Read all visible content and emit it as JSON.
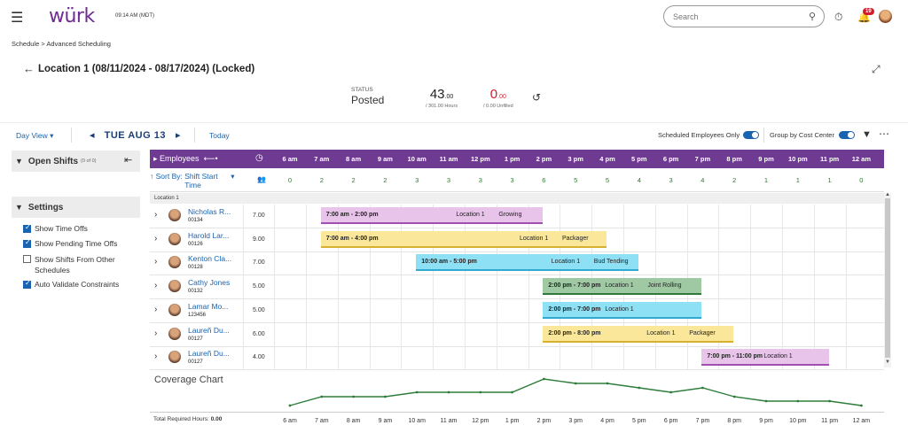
{
  "header": {
    "logo": "würk",
    "clock": "09:14 AM (MDT)",
    "search_placeholder": "Search",
    "notification_count": "19"
  },
  "breadcrumb": "Schedule > Advanced Scheduling",
  "page_title": "Location 1 (08/11/2024 - 08/17/2024) (Locked)",
  "status": {
    "label": "STATUS",
    "value": "Posted"
  },
  "metrics": {
    "hours": {
      "int": "43",
      "dec": ".00",
      "sub": "/ 301.00 Hours"
    },
    "unfilled": {
      "int": "0",
      "dec": ".00",
      "sub": "/ 0.00 Unfilled"
    }
  },
  "toolbar": {
    "day_view": "Day View",
    "date": "TUE AUG 13",
    "today": "Today",
    "scheduled_only": "Scheduled Employees Only",
    "group_cost_center": "Group by Cost Center"
  },
  "left_panel": {
    "open_shifts": "Open Shifts",
    "open_shifts_count": "(0 of 0)",
    "settings": "Settings",
    "options": [
      {
        "label": "Show Time Offs",
        "checked": true
      },
      {
        "label": "Show Pending Time Offs",
        "checked": true
      },
      {
        "label": "Show Shifts From Other Schedules",
        "checked": false
      },
      {
        "label": "Auto Validate Constraints",
        "checked": true
      }
    ]
  },
  "grid": {
    "employees_label": "Employees",
    "sort_by_label": "Sort By:",
    "sort_value": "Shift Start Time",
    "hours": [
      "6 am",
      "7 am",
      "8 am",
      "9 am",
      "10 am",
      "11 am",
      "12 pm",
      "1 pm",
      "2 pm",
      "3 pm",
      "4 pm",
      "5 pm",
      "6 pm",
      "7 pm",
      "8 pm",
      "9 pm",
      "10 pm",
      "11 pm",
      "12 am"
    ],
    "counts": [
      "0",
      "2",
      "2",
      "2",
      "3",
      "3",
      "3",
      "3",
      "6",
      "5",
      "5",
      "4",
      "3",
      "4",
      "2",
      "1",
      "1",
      "1",
      "0"
    ],
    "location_group": "Location 1",
    "employees": [
      {
        "name": "Nicholas R...",
        "id": "00134",
        "hours": "7.00",
        "shift": {
          "time": "7:00 am - 2:00 pm",
          "location": "Location 1",
          "role": "Growing",
          "start": 7,
          "end": 14,
          "color": "#e8c3ea",
          "line": "#a050b0"
        }
      },
      {
        "name": "Harold Lar...",
        "id": "00126",
        "hours": "9.00",
        "shift": {
          "time": "7:00 am - 4:00 pm",
          "location": "Location 1",
          "role": "Packager",
          "start": 7,
          "end": 16,
          "color": "#fbe79a",
          "line": "#d8b030"
        }
      },
      {
        "name": "Kenton Cla...",
        "id": "00128",
        "hours": "7.00",
        "shift": {
          "time": "10:00 am - 5:00 pm",
          "location": "Location 1",
          "role": "Bud Tending",
          "start": 10,
          "end": 17,
          "color": "#8ee0f5",
          "line": "#30a8d0"
        }
      },
      {
        "name": "Cathy Jones",
        "id": "00132",
        "hours": "5.00",
        "shift": {
          "time": "2:00 pm - 7:00 pm",
          "location": "Location 1",
          "role": "Joint Rolling",
          "start": 14,
          "end": 19,
          "color": "#9fc9a3",
          "line": "#2f7a3a"
        }
      },
      {
        "name": "Lamar Mo...",
        "id": "123456",
        "hours": "5.00",
        "shift": {
          "time": "2:00 pm - 7:00 pm",
          "location": "Location 1",
          "role": "",
          "start": 14,
          "end": 19,
          "color": "#8ee0f5",
          "line": "#30a8d0"
        }
      },
      {
        "name": "Laureñ Du...",
        "id": "00127",
        "hours": "6.00",
        "shift": {
          "time": "2:00 pm - 8:00 pm",
          "location": "Location 1",
          "role": "Packager",
          "start": 14,
          "end": 20,
          "color": "#fbe79a",
          "line": "#d8b030"
        }
      },
      {
        "name": "Laureñ Du...",
        "id": "00127",
        "hours": "4.00",
        "shift": {
          "time": "7:00 pm - 11:00 pm",
          "location": "Location 1",
          "role": "",
          "start": 19,
          "end": 23,
          "color": "#e8c3ea",
          "line": "#a050b0"
        }
      }
    ]
  },
  "coverage": {
    "title": "Coverage Chart",
    "total_label": "Total Required Hours:",
    "total_value": "0.00",
    "values": [
      0,
      2,
      2,
      2,
      3,
      3,
      3,
      3,
      6,
      5,
      5,
      4,
      3,
      4,
      2,
      1,
      1,
      1,
      0
    ],
    "line_color": "#2e7d3a"
  }
}
